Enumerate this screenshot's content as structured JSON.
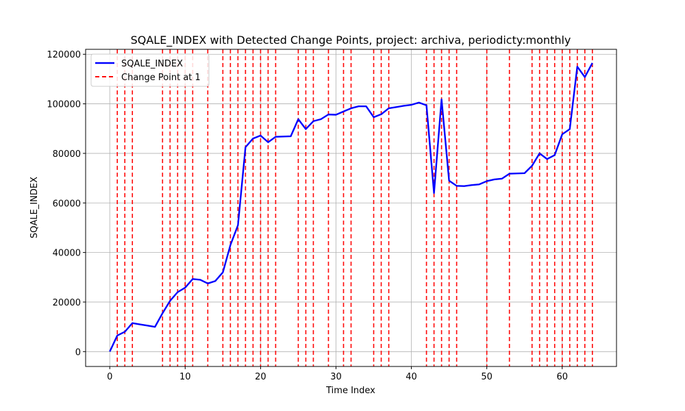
{
  "chart_data": {
    "type": "line",
    "title": "SQALE_INDEX with Detected Change Points, project: archiva, periodicty:monthly",
    "xlabel": "Time Index",
    "ylabel": "SQALE_INDEX",
    "xlim": [
      -3.2,
      67.2
    ],
    "ylim": [
      -6000,
      122000
    ],
    "xticks": [
      0,
      10,
      20,
      30,
      40,
      50,
      60
    ],
    "yticks": [
      0,
      20000,
      40000,
      60000,
      80000,
      100000,
      120000
    ],
    "grid": true,
    "legend_position": "top-left",
    "series": [
      {
        "name": "SQALE_INDEX",
        "color": "#0000ff",
        "x": [
          0,
          1,
          2,
          3,
          4,
          5,
          6,
          7,
          8,
          9,
          10,
          11,
          12,
          13,
          14,
          15,
          16,
          17,
          18,
          19,
          20,
          21,
          22,
          23,
          24,
          25,
          26,
          27,
          28,
          29,
          30,
          31,
          32,
          33,
          34,
          35,
          36,
          37,
          38,
          39,
          40,
          41,
          42,
          43,
          44,
          45,
          46,
          47,
          48,
          49,
          50,
          51,
          52,
          53,
          54,
          55,
          56,
          57,
          58,
          59,
          60,
          61,
          62,
          63,
          64
        ],
        "y": [
          0,
          6500,
          8000,
          11500,
          11000,
          10500,
          10000,
          15500,
          20500,
          24000,
          25800,
          29300,
          29000,
          27500,
          28500,
          32000,
          43000,
          51000,
          82500,
          86000,
          87200,
          84500,
          86700,
          86800,
          86900,
          93800,
          89800,
          93000,
          93800,
          95700,
          95600,
          96900,
          98200,
          99000,
          99000,
          94600,
          95800,
          98200,
          98700,
          99200,
          99600,
          100500,
          99400,
          64000,
          101800,
          69000,
          66900,
          66800,
          67200,
          67500,
          68800,
          69500,
          69800,
          71800,
          71900,
          72000,
          75000,
          80000,
          77700,
          79300,
          87700,
          89800,
          115000,
          110800,
          116500
        ]
      }
    ],
    "change_points": {
      "name": "Change Point at 1",
      "color": "#ff0000",
      "x": [
        1,
        2,
        3,
        7,
        8,
        9,
        10,
        11,
        13,
        15,
        16,
        17,
        18,
        19,
        20,
        21,
        22,
        25,
        26,
        27,
        29,
        31,
        32,
        35,
        36,
        37,
        42,
        43,
        44,
        45,
        46,
        50,
        53,
        56,
        57,
        58,
        59,
        60,
        61,
        62,
        63,
        64
      ]
    }
  }
}
